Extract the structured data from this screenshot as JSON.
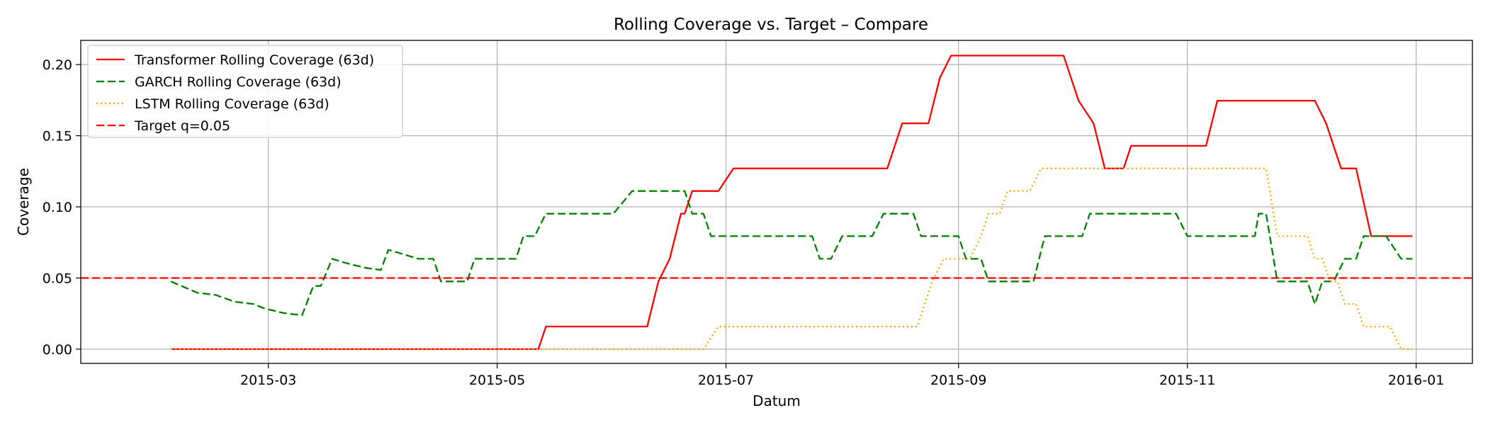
{
  "chart_data": {
    "type": "line",
    "title": "Rolling Coverage vs. Target – Compare",
    "xlabel": "Datum",
    "ylabel": "Coverage",
    "xlim": [
      "2015-01-10",
      "2016-01-16"
    ],
    "ylim": [
      -0.01,
      0.217
    ],
    "x_ticks": [
      "2015-03-01",
      "2015-05-01",
      "2015-07-01",
      "2015-09-01",
      "2015-11-01",
      "2016-01-01"
    ],
    "x_tick_labels": [
      "2015-03",
      "2015-05",
      "2015-07",
      "2015-09",
      "2015-11",
      "2016-01"
    ],
    "y_ticks": [
      0.0,
      0.05,
      0.1,
      0.15,
      0.2
    ],
    "y_tick_labels": [
      "0.00",
      "0.05",
      "0.10",
      "0.15",
      "0.20"
    ],
    "grid": true,
    "legend_position": "upper-left",
    "series": [
      {
        "name": "Transformer Rolling Coverage (63d)",
        "color": "#ff0000",
        "style": "solid",
        "points": [
          [
            "2015-02-03",
            0.0
          ],
          [
            "2015-05-12",
            0.0
          ],
          [
            "2015-05-14",
            0.0159
          ],
          [
            "2015-06-10",
            0.0159
          ],
          [
            "2015-06-13",
            0.0476
          ],
          [
            "2015-06-16",
            0.0635
          ],
          [
            "2015-06-19",
            0.0952
          ],
          [
            "2015-06-20",
            0.0952
          ],
          [
            "2015-06-22",
            0.1111
          ],
          [
            "2015-06-26",
            0.1111
          ],
          [
            "2015-06-29",
            0.1111
          ],
          [
            "2015-07-03",
            0.127
          ],
          [
            "2015-08-13",
            0.127
          ],
          [
            "2015-08-17",
            0.1587
          ],
          [
            "2015-08-24",
            0.1587
          ],
          [
            "2015-08-27",
            0.1905
          ],
          [
            "2015-08-30",
            0.2063
          ],
          [
            "2015-09-29",
            0.2063
          ],
          [
            "2015-10-03",
            0.1746
          ],
          [
            "2015-10-07",
            0.1587
          ],
          [
            "2015-10-10",
            0.127
          ],
          [
            "2015-10-15",
            0.127
          ],
          [
            "2015-10-17",
            0.1429
          ],
          [
            "2015-11-06",
            0.1429
          ],
          [
            "2015-11-09",
            0.1746
          ],
          [
            "2015-12-05",
            0.1746
          ],
          [
            "2015-12-08",
            0.1587
          ],
          [
            "2015-12-12",
            0.127
          ],
          [
            "2015-12-16",
            0.127
          ],
          [
            "2015-12-20",
            0.0794
          ],
          [
            "2015-12-21",
            0.0794
          ],
          [
            "2015-12-22",
            0.0794
          ],
          [
            "2015-12-24",
            0.0794
          ],
          [
            "2015-12-25",
            0.0794
          ],
          [
            "2015-12-26",
            0.0794
          ],
          [
            "2015-12-27",
            0.0794
          ],
          [
            "2015-12-28",
            0.0794
          ],
          [
            "2015-12-29",
            0.0794
          ],
          [
            "2015-12-30",
            0.0794
          ],
          [
            "2015-12-31",
            0.0794
          ]
        ]
      },
      {
        "name": "GARCH Rolling Coverage (63d)",
        "color": "#008000",
        "style": "dashed",
        "points": [
          [
            "2015-02-03",
            0.0476
          ],
          [
            "2015-02-10",
            0.0397
          ],
          [
            "2015-02-15",
            0.0381
          ],
          [
            "2015-02-20",
            0.0333
          ],
          [
            "2015-02-25",
            0.0317
          ],
          [
            "2015-02-28",
            0.0286
          ],
          [
            "2015-03-05",
            0.0254
          ],
          [
            "2015-03-10",
            0.0238
          ],
          [
            "2015-03-13",
            0.0444
          ],
          [
            "2015-03-15",
            0.0444
          ],
          [
            "2015-03-18",
            0.0635
          ],
          [
            "2015-03-22",
            0.0603
          ],
          [
            "2015-03-27",
            0.0571
          ],
          [
            "2015-03-31",
            0.0556
          ],
          [
            "2015-04-02",
            0.0698
          ],
          [
            "2015-04-06",
            0.0667
          ],
          [
            "2015-04-10",
            0.0635
          ],
          [
            "2015-04-14",
            0.0635
          ],
          [
            "2015-04-16",
            0.0476
          ],
          [
            "2015-04-23",
            0.0476
          ],
          [
            "2015-04-25",
            0.0635
          ],
          [
            "2015-05-06",
            0.0635
          ],
          [
            "2015-05-08",
            0.0794
          ],
          [
            "2015-05-11",
            0.0794
          ],
          [
            "2015-05-14",
            0.0952
          ],
          [
            "2015-06-01",
            0.0952
          ],
          [
            "2015-06-06",
            0.1111
          ],
          [
            "2015-06-20",
            0.1111
          ],
          [
            "2015-06-22",
            0.0952
          ],
          [
            "2015-06-25",
            0.0952
          ],
          [
            "2015-06-27",
            0.0794
          ],
          [
            "2015-07-24",
            0.0794
          ],
          [
            "2015-07-26",
            0.0635
          ],
          [
            "2015-07-29",
            0.0635
          ],
          [
            "2015-08-01",
            0.0794
          ],
          [
            "2015-08-09",
            0.0794
          ],
          [
            "2015-08-12",
            0.0952
          ],
          [
            "2015-08-20",
            0.0952
          ],
          [
            "2015-08-22",
            0.0794
          ],
          [
            "2015-09-01",
            0.0794
          ],
          [
            "2015-09-03",
            0.0635
          ],
          [
            "2015-09-07",
            0.0635
          ],
          [
            "2015-09-09",
            0.0476
          ],
          [
            "2015-09-21",
            0.0476
          ],
          [
            "2015-09-24",
            0.0794
          ],
          [
            "2015-10-04",
            0.0794
          ],
          [
            "2015-10-06",
            0.0952
          ],
          [
            "2015-10-29",
            0.0952
          ],
          [
            "2015-11-01",
            0.0794
          ],
          [
            "2015-11-19",
            0.0794
          ],
          [
            "2015-11-20",
            0.0952
          ],
          [
            "2015-11-22",
            0.0952
          ],
          [
            "2015-11-25",
            0.0476
          ],
          [
            "2015-12-03",
            0.0476
          ],
          [
            "2015-12-05",
            0.0317
          ],
          [
            "2015-12-07",
            0.0476
          ],
          [
            "2015-12-10",
            0.0476
          ],
          [
            "2015-12-13",
            0.0635
          ],
          [
            "2015-12-16",
            0.0635
          ],
          [
            "2015-12-18",
            0.0794
          ],
          [
            "2015-12-24",
            0.0794
          ],
          [
            "2015-12-28",
            0.0635
          ],
          [
            "2015-12-31",
            0.0635
          ]
        ]
      },
      {
        "name": "LSTM Rolling Coverage (63d)",
        "color": "#ffa500",
        "style": "dotted",
        "points": [
          [
            "2015-02-03",
            0.0
          ],
          [
            "2015-06-25",
            0.0
          ],
          [
            "2015-06-29",
            0.0159
          ],
          [
            "2015-08-21",
            0.0159
          ],
          [
            "2015-08-25",
            0.0476
          ],
          [
            "2015-08-28",
            0.0635
          ],
          [
            "2015-09-04",
            0.0635
          ],
          [
            "2015-09-07",
            0.0794
          ],
          [
            "2015-09-09",
            0.0952
          ],
          [
            "2015-09-12",
            0.0952
          ],
          [
            "2015-09-14",
            0.1111
          ],
          [
            "2015-09-20",
            0.1111
          ],
          [
            "2015-09-23",
            0.127
          ],
          [
            "2015-11-22",
            0.127
          ],
          [
            "2015-11-25",
            0.0794
          ],
          [
            "2015-12-03",
            0.0794
          ],
          [
            "2015-12-05",
            0.0635
          ],
          [
            "2015-12-07",
            0.0635
          ],
          [
            "2015-12-09",
            0.0476
          ],
          [
            "2015-12-11",
            0.0476
          ],
          [
            "2015-12-13",
            0.0317
          ],
          [
            "2015-12-16",
            0.0317
          ],
          [
            "2015-12-18",
            0.0159
          ],
          [
            "2015-12-25",
            0.0159
          ],
          [
            "2015-12-28",
            0.0
          ],
          [
            "2015-12-31",
            0.0
          ]
        ]
      },
      {
        "name": "Target q=0.05",
        "color": "#ff0000",
        "style": "dashed",
        "type": "hline",
        "y": 0.05
      }
    ]
  }
}
